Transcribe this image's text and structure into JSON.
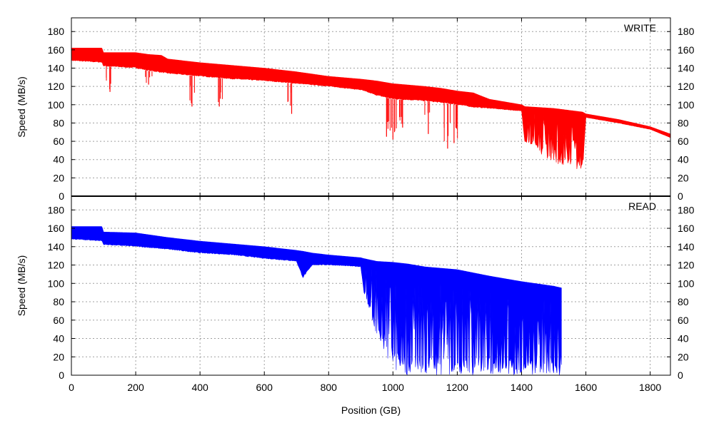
{
  "chart_data": [
    {
      "type": "area",
      "panel": "write",
      "label": "WRITE",
      "ylabel": "Speed (MB/s)",
      "xlabel": "",
      "xlim": [
        0,
        1863
      ],
      "ylim": [
        0,
        195
      ],
      "yticks": [
        0,
        20,
        40,
        60,
        80,
        100,
        120,
        140,
        160,
        180
      ],
      "xticks": [
        0,
        200,
        400,
        600,
        800,
        1000,
        1200,
        1400,
        1600,
        1800
      ],
      "color": "#ff0000",
      "series": [
        {
          "x": [
            0,
            95,
            100,
            200,
            240,
            280,
            300,
            400,
            500,
            600,
            700,
            800,
            900,
            950,
            1000,
            1100,
            1150,
            1200,
            1250,
            1300,
            1400,
            1410,
            1500,
            1590,
            1600,
            1700,
            1800,
            1863
          ],
          "upper": [
            162,
            162,
            157,
            157,
            155,
            154,
            150,
            146,
            143,
            140,
            136,
            131,
            128,
            126,
            123,
            120,
            118,
            115,
            113,
            106,
            100,
            98,
            96,
            92,
            90,
            84,
            76,
            68
          ],
          "lower": [
            148,
            146,
            142,
            140,
            137,
            135,
            134,
            131,
            128,
            126,
            123,
            120,
            116,
            110,
            106,
            104,
            102,
            100,
            97,
            96,
            93,
            60,
            35,
            28,
            86,
            80,
            73,
            64
          ]
        }
      ],
      "dips": [
        {
          "x": 120,
          "y": 114
        },
        {
          "x": 240,
          "y": 122
        },
        {
          "x": 375,
          "y": 98
        },
        {
          "x": 460,
          "y": 98
        },
        {
          "x": 685,
          "y": 90
        },
        {
          "x": 980,
          "y": 65
        },
        {
          "x": 1000,
          "y": 62
        },
        {
          "x": 1030,
          "y": 75
        },
        {
          "x": 1110,
          "y": 68
        },
        {
          "x": 1170,
          "y": 52
        },
        {
          "x": 1190,
          "y": 58
        }
      ]
    },
    {
      "type": "area",
      "panel": "read",
      "label": "READ",
      "ylabel": "Speed (MB/s)",
      "xlabel": "Position (GB)",
      "xlim": [
        0,
        1863
      ],
      "ylim": [
        0,
        195
      ],
      "yticks": [
        0,
        20,
        40,
        60,
        80,
        100,
        120,
        140,
        160,
        180
      ],
      "xticks": [
        0,
        200,
        400,
        600,
        800,
        1000,
        1200,
        1400,
        1600,
        1800
      ],
      "color": "#0000ff",
      "series": [
        {
          "x": [
            0,
            95,
            100,
            200,
            300,
            400,
            500,
            600,
            700,
            720,
            750,
            800,
            900,
            910,
            950,
            1000,
            1050,
            1100,
            1200,
            1300,
            1400,
            1500,
            1525
          ],
          "upper": [
            162,
            162,
            156,
            155,
            150,
            146,
            143,
            140,
            136,
            135,
            133,
            131,
            128,
            127,
            124,
            123,
            121,
            118,
            115,
            108,
            102,
            97,
            95
          ],
          "lower": [
            148,
            146,
            142,
            140,
            137,
            133,
            131,
            127,
            124,
            106,
            120,
            120,
            118,
            90,
            40,
            5,
            0,
            0,
            0,
            0,
            0,
            0,
            0
          ]
        }
      ]
    }
  ]
}
